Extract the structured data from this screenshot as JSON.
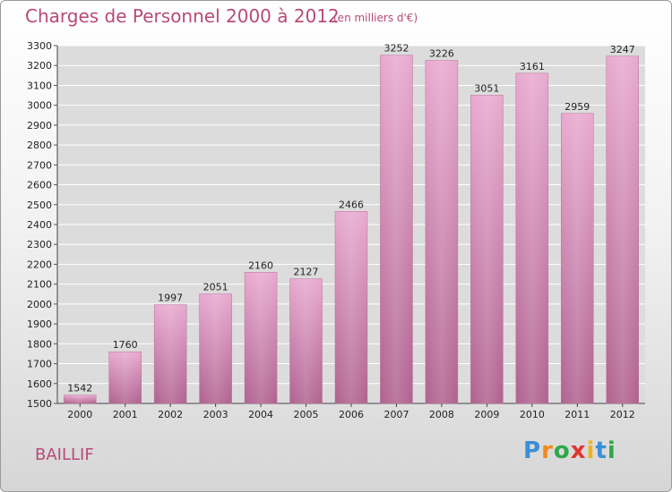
{
  "chart_data": {
    "type": "bar",
    "title": "Charges de Personnel 2000 à 2012",
    "subtitle": "(en milliers d'€)",
    "categories": [
      "2000",
      "2001",
      "2002",
      "2003",
      "2004",
      "2005",
      "2006",
      "2007",
      "2008",
      "2009",
      "2010",
      "2011",
      "2012"
    ],
    "values": [
      1542,
      1760,
      1997,
      2051,
      2160,
      2127,
      2466,
      3252,
      3226,
      3051,
      3161,
      2959,
      3247
    ],
    "ylim": [
      1500,
      3300
    ],
    "ytick_step": 100,
    "grid": true,
    "legend": "none",
    "bar_color": "#c77aa6",
    "xlabel": "",
    "ylabel": ""
  },
  "place_name": "BAILLIF",
  "logo": {
    "letters": [
      "P",
      "r",
      "o",
      "x",
      "i",
      "t",
      "i"
    ],
    "colors": [
      "#3a8fd6",
      "#f08a1c",
      "#2ea84a",
      "#e0342f",
      "#f0b21c",
      "#3a8fd6",
      "#2ea84a"
    ]
  },
  "colors": {
    "accent": "#b84a78",
    "bar": "#c77aa6"
  }
}
